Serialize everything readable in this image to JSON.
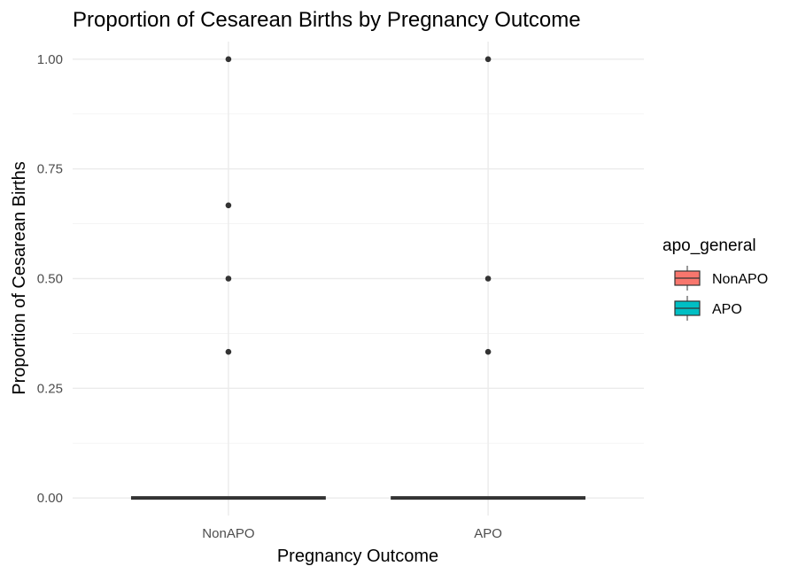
{
  "chart_data": {
    "type": "boxplot",
    "title": "Proportion of Cesarean Births by Pregnancy Outcome",
    "xlabel": "Pregnancy Outcome",
    "ylabel": "Proportion of Cesarean Births",
    "categories": [
      "NonAPO",
      "APO"
    ],
    "ylim": [
      -0.04,
      1.04
    ],
    "y_ticks": [
      0,
      0.25,
      0.5,
      0.75,
      1
    ],
    "y_tick_labels": [
      "0.00",
      "0.25",
      "0.50",
      "0.75",
      "1.00"
    ],
    "grid": true,
    "legend": {
      "title": "apo_general",
      "position": "right",
      "entries": [
        {
          "label": "NonAPO",
          "color": "#F8766D"
        },
        {
          "label": "APO",
          "color": "#00BFC4"
        }
      ]
    },
    "boxes": [
      {
        "category": "NonAPO",
        "min": 0,
        "q1": 0,
        "median": 0,
        "q3": 0,
        "max": 0,
        "outliers": [
          0.333,
          0.5,
          0.667,
          1.0
        ],
        "fill": "#F8766D"
      },
      {
        "category": "APO",
        "min": 0,
        "q1": 0,
        "median": 0,
        "q3": 0,
        "max": 0,
        "outliers": [
          0.333,
          0.5,
          1.0
        ],
        "fill": "#00BFC4"
      }
    ],
    "colors": {
      "box_line": "#333333",
      "outlier": "#333333"
    }
  }
}
